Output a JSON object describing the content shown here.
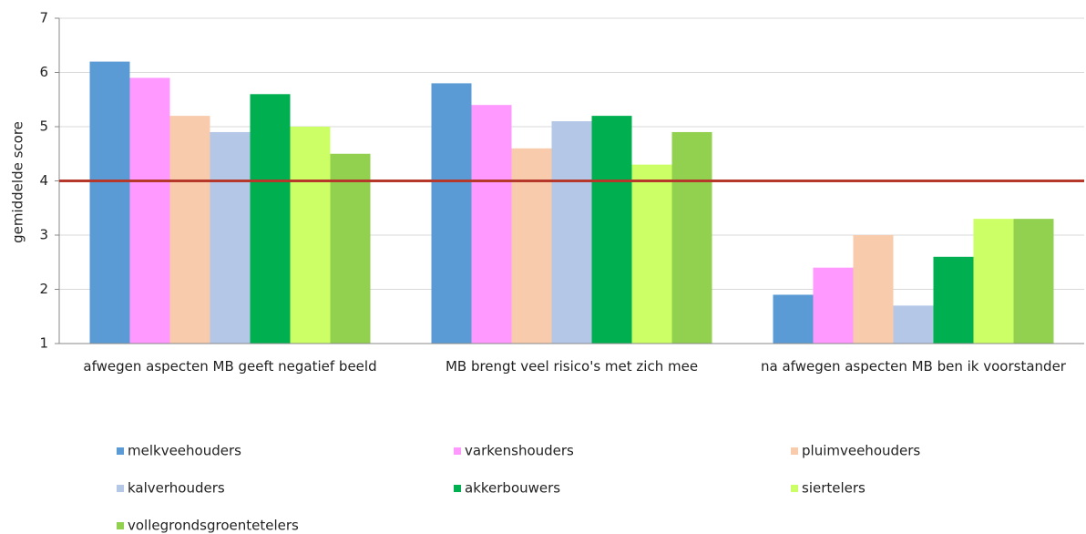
{
  "chart_data": {
    "type": "bar",
    "y_label": "gemiddelde score",
    "categories": [
      "afwegen aspecten MB geeft negatief beeld",
      "MB brengt veel risico's met zich mee",
      "na afwegen aspecten MB ben ik voorstander"
    ],
    "series": [
      {
        "name": "melkveehouders",
        "color": "#5b9bd5",
        "values": [
          6.2,
          5.8,
          1.9
        ]
      },
      {
        "name": "varkenshouders",
        "color": "#ff99ff",
        "values": [
          5.9,
          5.4,
          2.4
        ]
      },
      {
        "name": "pluimveehouders",
        "color": "#f8cbad",
        "values": [
          5.2,
          4.6,
          3.0
        ]
      },
      {
        "name": "kalverhouders",
        "color": "#b4c7e7",
        "values": [
          4.9,
          5.1,
          1.7
        ]
      },
      {
        "name": "akkerbouwers",
        "color": "#00b050",
        "values": [
          5.6,
          5.2,
          2.6
        ]
      },
      {
        "name": "siertelers",
        "color": "#ccff66",
        "values": [
          5.0,
          4.3,
          3.3
        ]
      },
      {
        "name": "vollegrondsgroentetelers",
        "color": "#92d050",
        "values": [
          4.5,
          4.9,
          3.3
        ]
      }
    ],
    "ylim": [
      1,
      7
    ],
    "yticks": [
      1,
      2,
      3,
      4,
      5,
      6,
      7
    ],
    "grid": true,
    "reference_line": {
      "value": 4,
      "color": "#b5382a"
    },
    "legend": "bottom"
  }
}
